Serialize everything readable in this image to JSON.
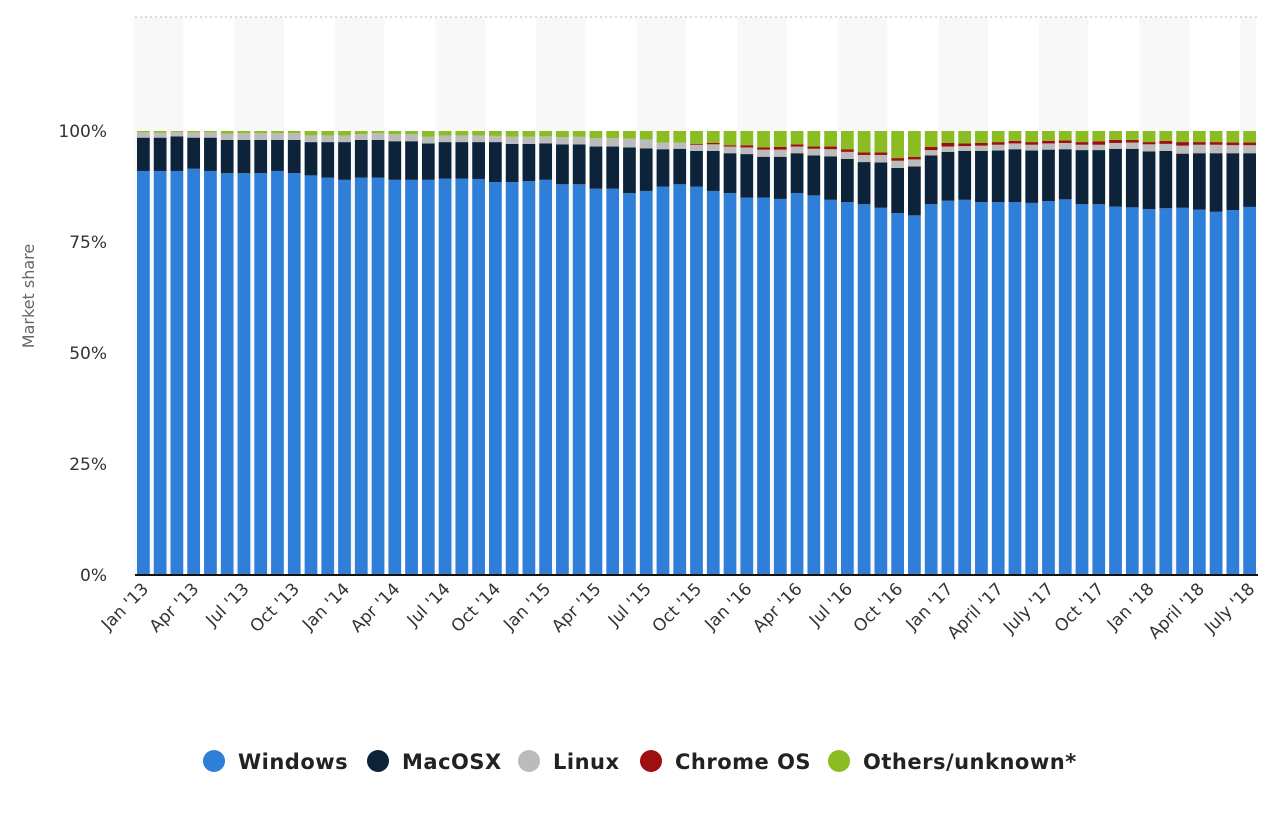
{
  "chart_data": {
    "type": "bar",
    "stacked": true,
    "ylabel": "Market share",
    "xlabel": "",
    "ylim": [
      0,
      100
    ],
    "yticks": [
      "0%",
      "25%",
      "50%",
      "75%",
      "100%"
    ],
    "legend_position": "bottom",
    "categories": [
      "Jan '13",
      "Feb '13",
      "Mar '13",
      "Apr '13",
      "May '13",
      "Jun '13",
      "Jul '13",
      "Aug '13",
      "Sep '13",
      "Oct '13",
      "Nov '13",
      "Dec '13",
      "Jan '14",
      "Feb '14",
      "Mar '14",
      "Apr '14",
      "May '14",
      "Jun '14",
      "Jul '14",
      "Aug '14",
      "Sep '14",
      "Oct '14",
      "Nov '14",
      "Dec '14",
      "Jan '15",
      "Feb '15",
      "Mar '15",
      "Apr '15",
      "May '15",
      "Jun '15",
      "Jul '15",
      "Aug '15",
      "Sep '15",
      "Oct '15",
      "Nov '15",
      "Dec '15",
      "Jan '16",
      "Feb '16",
      "Mar '16",
      "Apr '16",
      "May '16",
      "Jun '16",
      "Jul '16",
      "Aug '16",
      "Sep '16",
      "Oct '16",
      "Nov '16",
      "Dec '16",
      "Jan '17",
      "Feb '17",
      "Mar '17",
      "April '17",
      "May '17",
      "Jun '17",
      "July '17",
      "Aug '17",
      "Sep '17",
      "Oct '17",
      "Nov '17",
      "Dec '17",
      "Jan '18",
      "Feb '18",
      "Mar '18",
      "April '18",
      "May '18",
      "Jun '18",
      "July '18"
    ],
    "tick_labels": [
      "Jan '13",
      "Apr '13",
      "Jul '13",
      "Oct '13",
      "Jan '14",
      "Apr '14",
      "Jul '14",
      "Oct '14",
      "Jan '15",
      "Apr '15",
      "Jul '15",
      "Oct '15",
      "Jan '16",
      "Apr '16",
      "Jul '16",
      "Oct '16",
      "Jan '17",
      "April '17",
      "July '17",
      "Oct '17",
      "Jan '18",
      "April '18",
      "July '18"
    ],
    "series": [
      {
        "name": "Windows",
        "color": "#2f7ed8",
        "values": [
          91,
          91,
          91,
          91.5,
          91,
          90.5,
          90.5,
          90.5,
          91,
          90.5,
          90,
          89.5,
          89,
          89.5,
          89.5,
          89,
          89,
          89,
          89.3,
          89.3,
          89.2,
          88.5,
          88.5,
          88.7,
          89,
          88,
          88,
          87,
          87,
          86,
          86.5,
          87.5,
          88,
          87.5,
          86.5,
          86,
          85,
          85,
          84.7,
          86,
          85.5,
          84.5,
          84,
          83.5,
          82.7,
          81.5,
          81,
          83.5,
          84.3,
          84.5,
          84,
          84,
          84,
          83.8,
          84.2,
          84.6,
          83.5,
          83.5,
          83,
          82.8,
          82.4,
          82.6,
          82.7,
          82.3,
          81.8,
          82.2,
          82.9
        ]
      },
      {
        "name": "MacOSX",
        "color": "#0d233a",
        "values": [
          7.5,
          7.5,
          7.8,
          7,
          7.5,
          7.5,
          7.5,
          7.5,
          7,
          7.5,
          7.5,
          8,
          8.5,
          8.5,
          8.5,
          8.7,
          8.7,
          8.2,
          8.2,
          8.2,
          8.3,
          9,
          8.6,
          8.4,
          8.2,
          9,
          9,
          9.5,
          9.5,
          10.3,
          9.6,
          8.4,
          8,
          8,
          9,
          9,
          9.8,
          9.2,
          9.5,
          9,
          9,
          9.8,
          9.7,
          9.5,
          10.2,
          10.2,
          11,
          11,
          11,
          11,
          11.5,
          11.6,
          11.9,
          11.8,
          11.6,
          11.3,
          12.2,
          12.2,
          13,
          13.2,
          13,
          12.9,
          12.2,
          12.7,
          13.2,
          12.8,
          12.1
        ]
      },
      {
        "name": "Linux",
        "color": "#bbbbbb",
        "values": [
          1.2,
          1.1,
          1,
          1.2,
          1.2,
          1.4,
          1.5,
          1.5,
          1.5,
          1.5,
          1.5,
          1.5,
          1.5,
          1.3,
          1.5,
          1.6,
          1.6,
          1.5,
          1.5,
          1.5,
          1.5,
          1.4,
          1.6,
          1.6,
          1.6,
          1.6,
          1.7,
          1.9,
          1.9,
          2,
          2,
          1.5,
          1.4,
          1.4,
          1.5,
          1.5,
          1.5,
          1.6,
          1.6,
          1.5,
          1.5,
          1.6,
          1.6,
          1.6,
          1.7,
          1.6,
          1.6,
          1.2,
          1.2,
          1.1,
          1.2,
          1.3,
          1.3,
          1.3,
          1.4,
          1.4,
          1.2,
          1.2,
          1.3,
          1.4,
          1.6,
          1.6,
          1.8,
          1.9,
          1.9,
          1.8,
          1.8
        ]
      },
      {
        "name": "Chrome OS",
        "color": "#a00f0f",
        "values": [
          0,
          0,
          0,
          0,
          0,
          0,
          0,
          0,
          0,
          0,
          0,
          0,
          0,
          0,
          0,
          0,
          0,
          0,
          0,
          0,
          0,
          0,
          0,
          0,
          0,
          0,
          0,
          0,
          0,
          0,
          0,
          0,
          0,
          0.2,
          0.3,
          0.3,
          0.5,
          0.5,
          0.6,
          0.5,
          0.5,
          0.6,
          0.6,
          0.6,
          0.6,
          0.6,
          0.6,
          0.7,
          0.8,
          0.6,
          0.6,
          0.6,
          0.6,
          0.6,
          0.6,
          0.6,
          0.6,
          0.8,
          0.7,
          0.6,
          0.5,
          0.7,
          0.8,
          0.6,
          0.6,
          0.6,
          0.6
        ]
      },
      {
        "name": "Others/unknown*",
        "color": "#8bbc21",
        "values": [
          0.3,
          0.4,
          0.2,
          0.3,
          0.3,
          0.6,
          0.5,
          0.5,
          0.5,
          0.5,
          1,
          1,
          1,
          0.7,
          0.5,
          0.7,
          0.7,
          1.3,
          1,
          1,
          1,
          1.1,
          1.3,
          1.3,
          1.2,
          1.4,
          1.3,
          1.6,
          1.6,
          1.7,
          1.9,
          2.6,
          2.6,
          2.9,
          2.7,
          3.2,
          3.2,
          3.7,
          3.6,
          3,
          3.5,
          3.5,
          4.1,
          4.8,
          4.8,
          6.1,
          5.8,
          3.6,
          2.7,
          2.8,
          2.7,
          2.5,
          2.2,
          2.5,
          2.2,
          2.1,
          2.5,
          2.3,
          2,
          2,
          2.5,
          2.2,
          2.5,
          2.5,
          2.5,
          2.6,
          2.6
        ]
      }
    ]
  },
  "legend": {
    "items": [
      {
        "label": "Windows",
        "color": "#2f7ed8"
      },
      {
        "label": "MacOSX",
        "color": "#0d233a"
      },
      {
        "label": "Linux",
        "color": "#bbbbbb"
      },
      {
        "label": "Chrome OS",
        "color": "#a00f0f"
      },
      {
        "label": "Others/unknown*",
        "color": "#8bbc21"
      }
    ]
  }
}
